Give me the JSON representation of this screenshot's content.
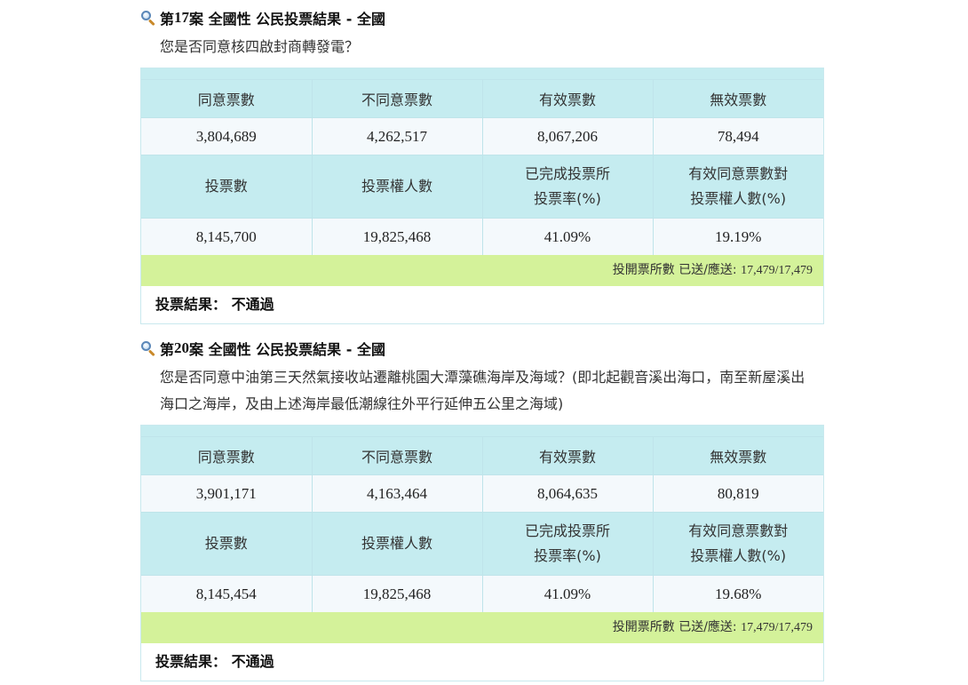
{
  "cases": [
    {
      "title_prefix": "第",
      "title_num": "17",
      "title_suffix": "案 全國性 公民投票結果 - 全國",
      "question": "您是否同意核四啟封商轉發電？",
      "headers_row1": [
        "同意票數",
        "不同意票數",
        "有效票數",
        "無效票數"
      ],
      "values_row1": [
        "3,804,689",
        "4,262,517",
        "8,067,206",
        "78,494"
      ],
      "headers_row2": [
        {
          "line1": "投票數",
          "line2": ""
        },
        {
          "line1": "投票權人數",
          "line2": ""
        },
        {
          "line1": "已完成投票所",
          "line2": "投票率(%)"
        },
        {
          "line1": "有效同意票數對",
          "line2": "投票權人數(%)"
        }
      ],
      "values_row2": [
        "8,145,700",
        "19,825,468",
        "41.09%",
        "19.19%"
      ],
      "stations_label": "投開票所數 已送/應送: ",
      "stations_value": "17,479/17,479",
      "result_label": "投票結果：",
      "result_value": "不通過"
    },
    {
      "title_prefix": "第",
      "title_num": "20",
      "title_suffix": "案 全國性 公民投票結果 - 全國",
      "question": "您是否同意中油第三天然氣接收站遷離桃園大潭藻礁海岸及海域？(即北起觀音溪出海口，南至新屋溪出海口之海岸，及由上述海岸最低潮線往外平行延伸五公里之海域)",
      "headers_row1": [
        "同意票數",
        "不同意票數",
        "有效票數",
        "無效票數"
      ],
      "values_row1": [
        "3,901,171",
        "4,163,464",
        "8,064,635",
        "80,819"
      ],
      "headers_row2": [
        {
          "line1": "投票數",
          "line2": ""
        },
        {
          "line1": "投票權人數",
          "line2": ""
        },
        {
          "line1": "已完成投票所",
          "line2": "投票率(%)"
        },
        {
          "line1": "有效同意票數對",
          "line2": "投票權人數(%)"
        }
      ],
      "values_row2": [
        "8,145,454",
        "19,825,468",
        "41.09%",
        "19.68%"
      ],
      "stations_label": "投開票所數 已送/應送: ",
      "stations_value": "17,479/17,479",
      "result_label": "投票結果：",
      "result_value": "不通過"
    }
  ],
  "icons": {
    "title_icon": "magnifier-icon"
  },
  "colors": {
    "header_bg": "#c5ecf0",
    "value_bg": "#f4f9fc",
    "stations_bg": "#d4f29a"
  }
}
